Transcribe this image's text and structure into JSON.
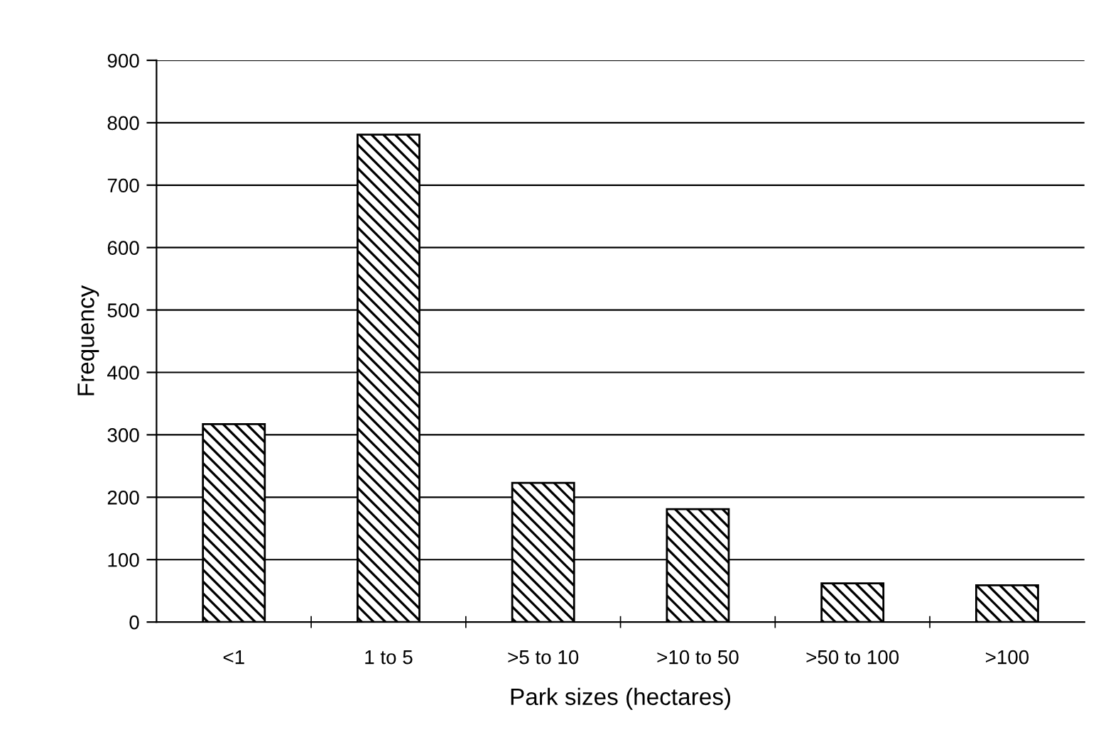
{
  "chart_data": {
    "type": "bar",
    "xlabel": "Park sizes (hectares)",
    "ylabel": "Frequency",
    "categories": [
      "<1",
      "1 to 5",
      ">5 to 10",
      ">10 to 50",
      ">50 to 100",
      ">100"
    ],
    "values": [
      317,
      781,
      223,
      181,
      62,
      59
    ],
    "ylim": [
      0,
      900
    ],
    "yticks": [
      0,
      100,
      200,
      300,
      400,
      500,
      600,
      700,
      800,
      900
    ],
    "grid": "y"
  }
}
